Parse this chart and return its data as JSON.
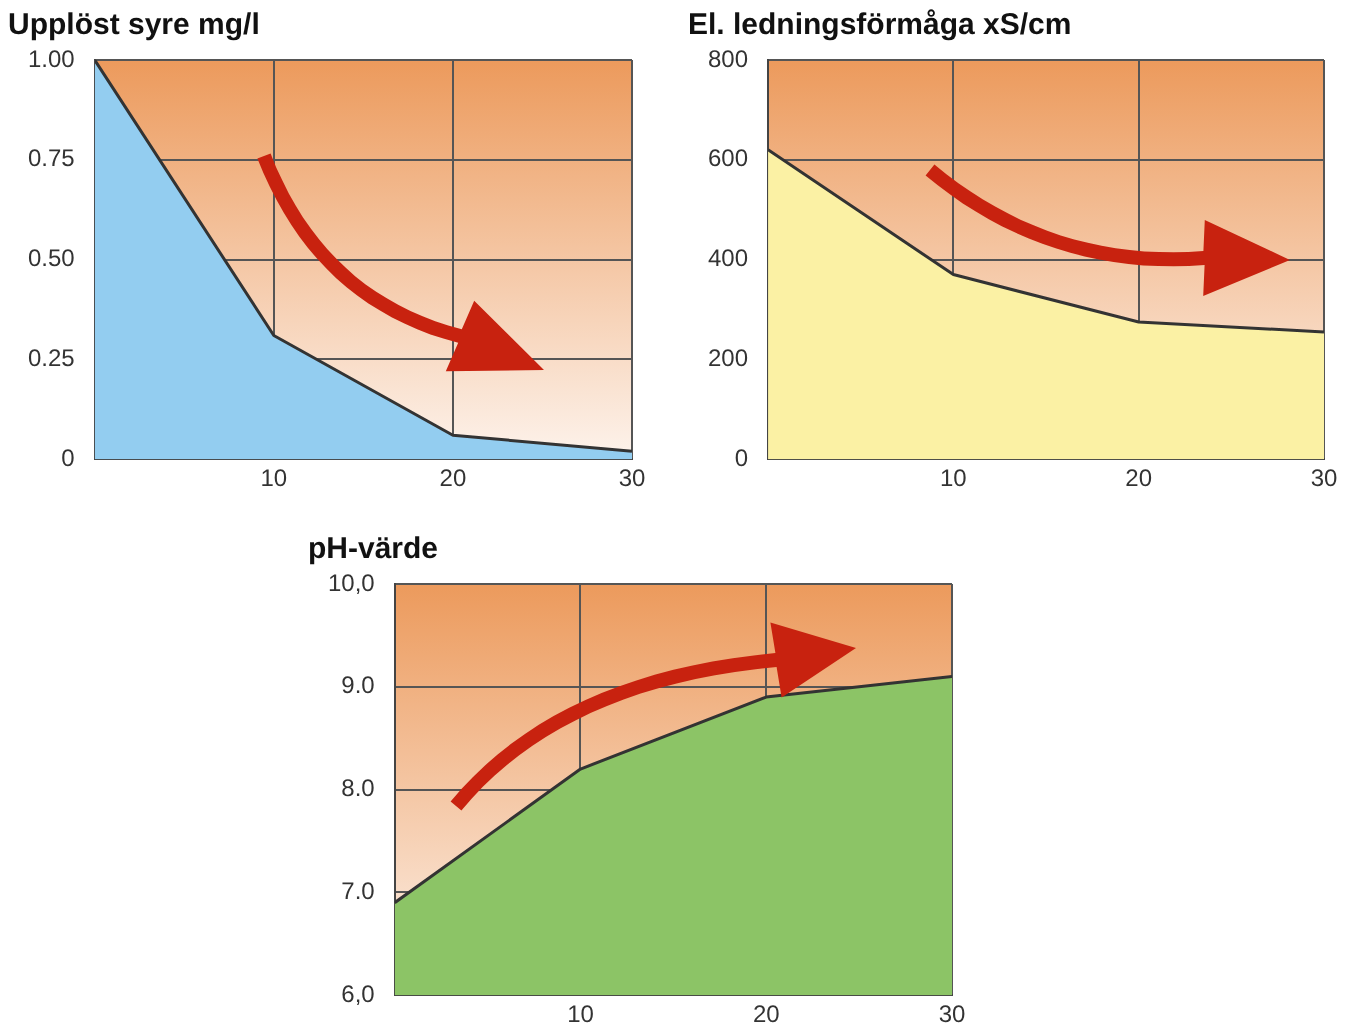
{
  "chart_data": [
    {
      "type": "area",
      "title": "Upplöst syre mg/l",
      "x": [
        0,
        10,
        20,
        30
      ],
      "values": [
        1.0,
        0.31,
        0.06,
        0.02
      ],
      "color": "#93cdf0",
      "xlim": [
        0,
        30
      ],
      "xticks": [
        10,
        20,
        30
      ],
      "ylim": [
        0,
        1
      ],
      "yticks": [
        {
          "value": 0,
          "label": "0"
        },
        {
          "value": 0.25,
          "label": "0.25"
        },
        {
          "value": 0.5,
          "label": "0.50"
        },
        {
          "value": 0.75,
          "label": "0.75"
        },
        {
          "value": 1,
          "label": "1.00"
        }
      ],
      "grid": true
    },
    {
      "type": "area",
      "title": "El. ledningsförmåga xS/cm",
      "x": [
        0,
        10,
        20,
        30
      ],
      "values": [
        620,
        370,
        275,
        255
      ],
      "color": "#fbf1a4",
      "xlim": [
        0,
        30
      ],
      "xticks": [
        10,
        20,
        30
      ],
      "ylim": [
        0,
        800
      ],
      "yticks": [
        0,
        200,
        400,
        600,
        800
      ],
      "grid": true
    },
    {
      "type": "area",
      "title": "pH-värde",
      "x": [
        0,
        10,
        20,
        30
      ],
      "values": [
        6.9,
        8.2,
        8.9,
        9.1
      ],
      "color": "#8cc466",
      "xlim": [
        0,
        30
      ],
      "xticks": [
        10,
        20,
        30
      ],
      "ylim": [
        6,
        10
      ],
      "yticks": [
        {
          "value": 6,
          "label": "6,0"
        },
        {
          "value": 7,
          "label": "7.0"
        },
        {
          "value": 8,
          "label": "8.0"
        },
        {
          "value": 9,
          "label": "9.0"
        },
        {
          "value": 10,
          "label": "10,0"
        }
      ],
      "grid": true
    }
  ]
}
